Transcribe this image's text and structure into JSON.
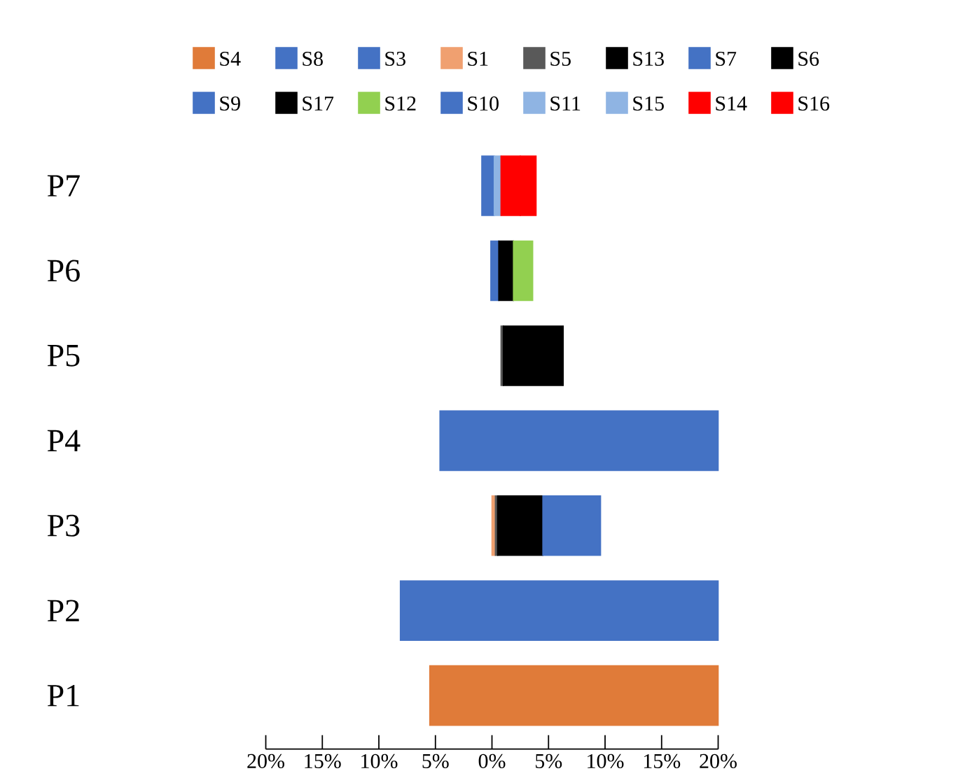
{
  "chart_data": {
    "type": "bar",
    "orientation": "horizontal",
    "legend": "top",
    "categories": [
      "P7",
      "P6",
      "P5",
      "P4",
      "P3",
      "P2",
      "P1"
    ],
    "xlim": [
      -20,
      20
    ],
    "xticks": [
      {
        "value": -20,
        "label": "20%"
      },
      {
        "value": -15,
        "label": "15%"
      },
      {
        "value": -10,
        "label": "10%"
      },
      {
        "value": -5,
        "label": "5%"
      },
      {
        "value": 0,
        "label": "0%"
      },
      {
        "value": 5,
        "label": "5%"
      },
      {
        "value": 10,
        "label": "10%"
      },
      {
        "value": 15,
        "label": "15%"
      },
      {
        "value": 20,
        "label": "20%"
      }
    ],
    "series": [
      {
        "name": "S4",
        "color": "#e07b39",
        "values": [
          null,
          null,
          null,
          null,
          null,
          null,
          25.5
        ],
        "base": [
          null,
          null,
          null,
          null,
          null,
          null,
          -5.5
        ]
      },
      {
        "name": "S8",
        "color": "#4472c4",
        "values": [
          null,
          null,
          null,
          null,
          null,
          28.1,
          null
        ],
        "base": [
          null,
          null,
          null,
          null,
          null,
          -8.1,
          null
        ]
      },
      {
        "name": "S3",
        "color": "#4472c4",
        "values": [
          null,
          null,
          null,
          24.6,
          null,
          null,
          null
        ],
        "base": [
          null,
          null,
          null,
          -4.6,
          null,
          null,
          null
        ]
      },
      {
        "name": "S1",
        "color": "#f0a070",
        "values": [
          null,
          null,
          null,
          null,
          0.3,
          null,
          null
        ],
        "base": [
          null,
          null,
          null,
          null,
          0,
          null,
          null
        ]
      },
      {
        "name": "S5",
        "color": "#595959",
        "values": [
          null,
          null,
          0.2,
          null,
          0.2,
          null,
          null
        ],
        "base": [
          null,
          null,
          0.8,
          null,
          0.3,
          null,
          null
        ]
      },
      {
        "name": "S13",
        "color": "#000000",
        "values": [
          null,
          null,
          null,
          null,
          4.0,
          null,
          null
        ],
        "base": [
          null,
          null,
          null,
          null,
          0.5,
          null,
          null
        ]
      },
      {
        "name": "S7",
        "color": "#4472c4",
        "values": [
          null,
          null,
          null,
          null,
          5.1,
          null,
          null
        ],
        "base": [
          null,
          null,
          null,
          null,
          4.5,
          null,
          null
        ]
      },
      {
        "name": "S6",
        "color": "#000000",
        "values": [
          null,
          null,
          5.3,
          null,
          null,
          null,
          null
        ],
        "base": [
          null,
          null,
          1.0,
          null,
          null,
          null,
          null
        ]
      },
      {
        "name": "S9",
        "color": "#4472c4",
        "values": [
          null,
          0.7,
          null,
          null,
          null,
          null,
          null
        ],
        "base": [
          null,
          -0.1,
          null,
          null,
          null,
          null,
          null
        ]
      },
      {
        "name": "S17",
        "color": "#000000",
        "values": [
          null,
          1.3,
          null,
          null,
          null,
          null,
          null
        ],
        "base": [
          null,
          0.6,
          null,
          null,
          null,
          null,
          null
        ]
      },
      {
        "name": "S12",
        "color": "#92d050",
        "values": [
          null,
          1.7,
          null,
          null,
          null,
          null,
          null
        ],
        "base": [
          null,
          1.9,
          null,
          null,
          null,
          null,
          null
        ]
      },
      {
        "name": "S10",
        "color": "#4472c4",
        "values": [
          1.1,
          null,
          null,
          null,
          null,
          null,
          null
        ],
        "base": [
          -0.9,
          null,
          null,
          null,
          null,
          null,
          null
        ]
      },
      {
        "name": "S11",
        "color": "#8fb4e3",
        "values": [
          null,
          null,
          null,
          null,
          null,
          null,
          null
        ]
      },
      {
        "name": "S15",
        "color": "#8fb4e3",
        "values": [
          0.6,
          null,
          null,
          null,
          null,
          null,
          null
        ],
        "base": [
          0.2,
          null,
          null,
          null,
          null,
          null,
          null
        ]
      },
      {
        "name": "S14",
        "color": "#ff0000",
        "values": [
          1.7,
          null,
          null,
          null,
          null,
          null,
          null
        ],
        "base": [
          0.8,
          null,
          null,
          null,
          null,
          null,
          null
        ]
      },
      {
        "name": "S16",
        "color": "#ff0000",
        "values": [
          1.4,
          null,
          null,
          null,
          null,
          null,
          null
        ],
        "base": [
          2.5,
          null,
          null,
          null,
          null,
          null,
          null
        ]
      }
    ]
  }
}
